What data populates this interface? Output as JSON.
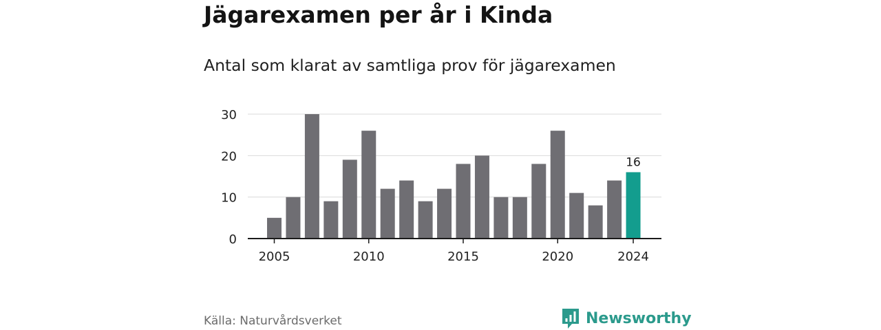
{
  "header": {
    "title": "Jägarexamen per år i Kinda",
    "subtitle": "Antal som klarat av samtliga prov för jägarexamen"
  },
  "footer": {
    "source": "Källa: Naturvårdsverket",
    "brand": "Newsworthy"
  },
  "colors": {
    "bar": "#6f6e73",
    "highlight": "#139d8e",
    "grid": "#d9d9d9",
    "axis": "#1a1a1a",
    "brand": "#2b9a8c"
  },
  "icons": {
    "brand_logo": "newsworthy-logo-icon"
  },
  "chart_data": {
    "type": "bar",
    "categories": [
      2005,
      2006,
      2007,
      2008,
      2009,
      2010,
      2011,
      2012,
      2013,
      2014,
      2015,
      2016,
      2017,
      2018,
      2019,
      2020,
      2021,
      2022,
      2023,
      2024
    ],
    "values": [
      5,
      10,
      30,
      9,
      19,
      26,
      12,
      14,
      9,
      12,
      18,
      20,
      10,
      10,
      18,
      26,
      11,
      8,
      14,
      16
    ],
    "x_tick_labels": [
      "2005",
      "2010",
      "2015",
      "2020",
      "2024"
    ],
    "y_ticks": [
      0,
      10,
      20,
      30
    ],
    "ylim": [
      0,
      30
    ],
    "grid": true,
    "highlighted_category": 2024,
    "data_labels": [
      {
        "category": 2024,
        "text": "16"
      }
    ],
    "title": "Jägarexamen per år i Kinda",
    "subtitle": "Antal som klarat av samtliga prov för jägarexamen"
  }
}
